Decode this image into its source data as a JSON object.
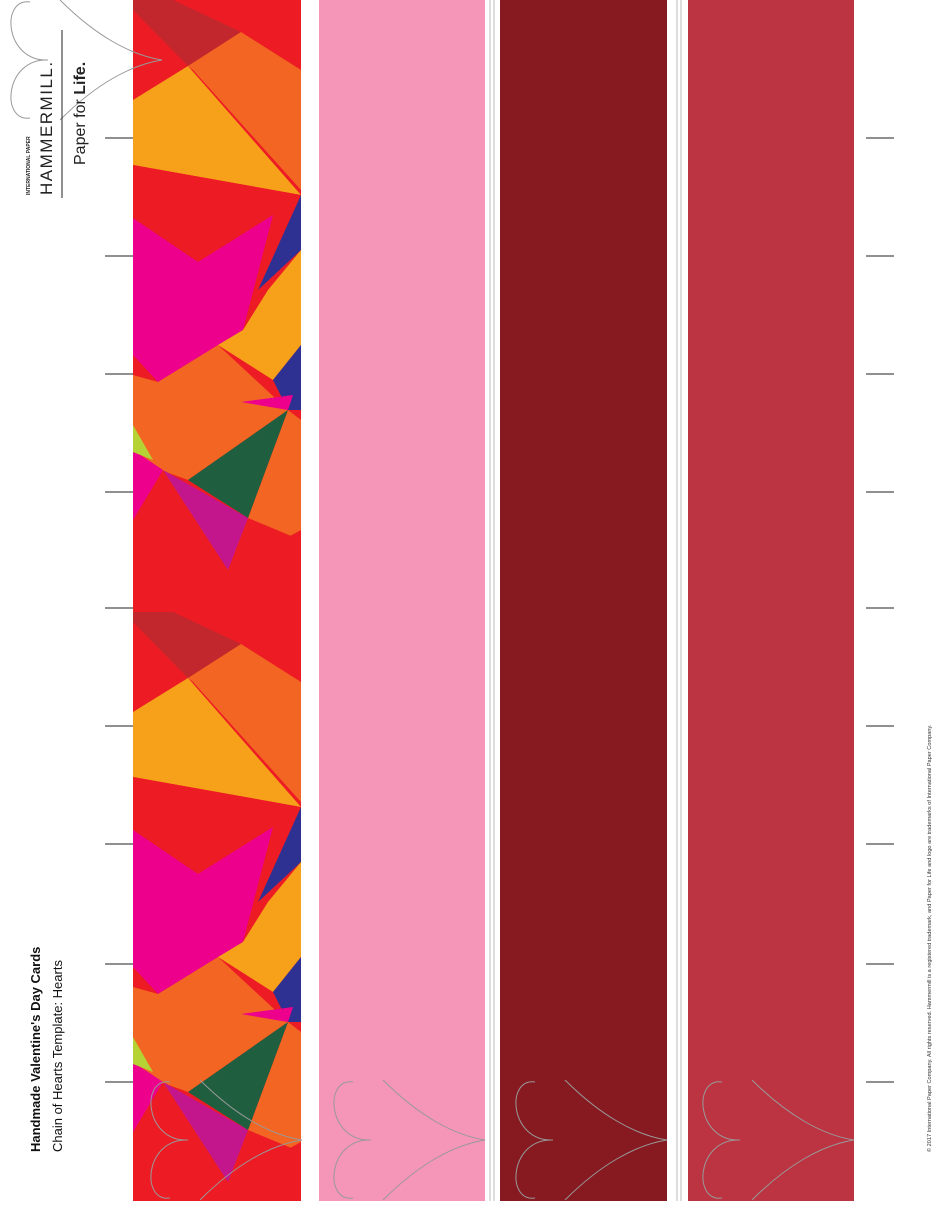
{
  "logo": {
    "company": "INTERNATIONAL PAPER",
    "brand": "HAMMERMILL.",
    "tagline_prefix": "Paper for",
    "tagline_bold": "Life."
  },
  "title": "Handmade Valentine's Day Cards",
  "subtitle": "Chain of Hearts Template: Hearts",
  "copyright": "© 2017 International Paper Company. All rights reserved. Hammermill is a registered trademark, and Paper for Life and logo are trademarks of International Paper Company."
}
